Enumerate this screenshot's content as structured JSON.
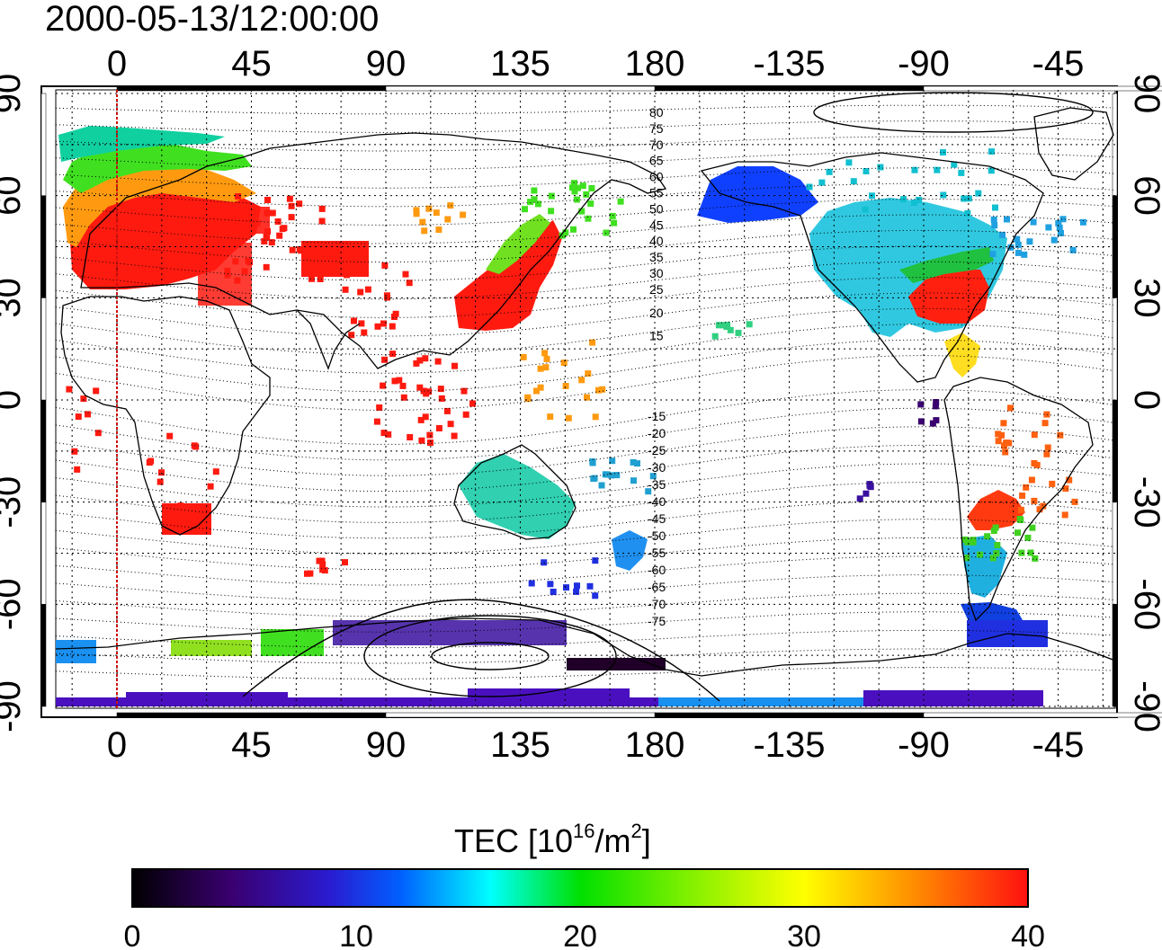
{
  "title": "2000-05-13/12:00:00",
  "map": {
    "lon_ticks": [
      {
        "lon": 0,
        "label": "0"
      },
      {
        "lon": 45,
        "label": "45"
      },
      {
        "lon": 90,
        "label": "90"
      },
      {
        "lon": 135,
        "label": "135"
      },
      {
        "lon": 180,
        "label": "180"
      },
      {
        "lon": 225,
        "label": "-135"
      },
      {
        "lon": 270,
        "label": "-90"
      },
      {
        "lon": 315,
        "label": "-45"
      }
    ],
    "lat_ticks": [
      {
        "lat": 90,
        "label": "90"
      },
      {
        "lat": 60,
        "label": "60"
      },
      {
        "lat": 30,
        "label": "30"
      },
      {
        "lat": 0,
        "label": "0"
      },
      {
        "lat": -30,
        "label": "-30"
      },
      {
        "lat": -60,
        "label": "-60"
      },
      {
        "lat": -90,
        "label": "-90"
      }
    ],
    "contour_labels_north": [
      "80",
      "75",
      "70",
      "65",
      "60",
      "55",
      "50",
      "45",
      "40",
      "35",
      "30",
      "25",
      "20",
      "15"
    ],
    "contour_labels_south": [
      "-15",
      "-20",
      "-25",
      "-30",
      "-35",
      "-40",
      "-45",
      "-50",
      "-55",
      "-60",
      "-65",
      "-70",
      "-75"
    ],
    "colors": {
      "reference_line": "#d01010",
      "frame": "#000000"
    }
  },
  "colorbar": {
    "title_main": "TEC  [10",
    "title_sup1": "16",
    "title_mid": "/m",
    "title_sup2": "2",
    "title_end": "]",
    "ticks": [
      {
        "value": 0,
        "label": "0"
      },
      {
        "value": 10,
        "label": "10"
      },
      {
        "value": 20,
        "label": "20"
      },
      {
        "value": 30,
        "label": "30"
      },
      {
        "value": 40,
        "label": "40"
      }
    ],
    "range": [
      0,
      40
    ],
    "stops": [
      "#000000",
      "#3a0070",
      "#2a1bd0",
      "#0060ff",
      "#00ffff",
      "#00e000",
      "#80f000",
      "#ffff00",
      "#ff9000",
      "#ff1010"
    ]
  }
}
